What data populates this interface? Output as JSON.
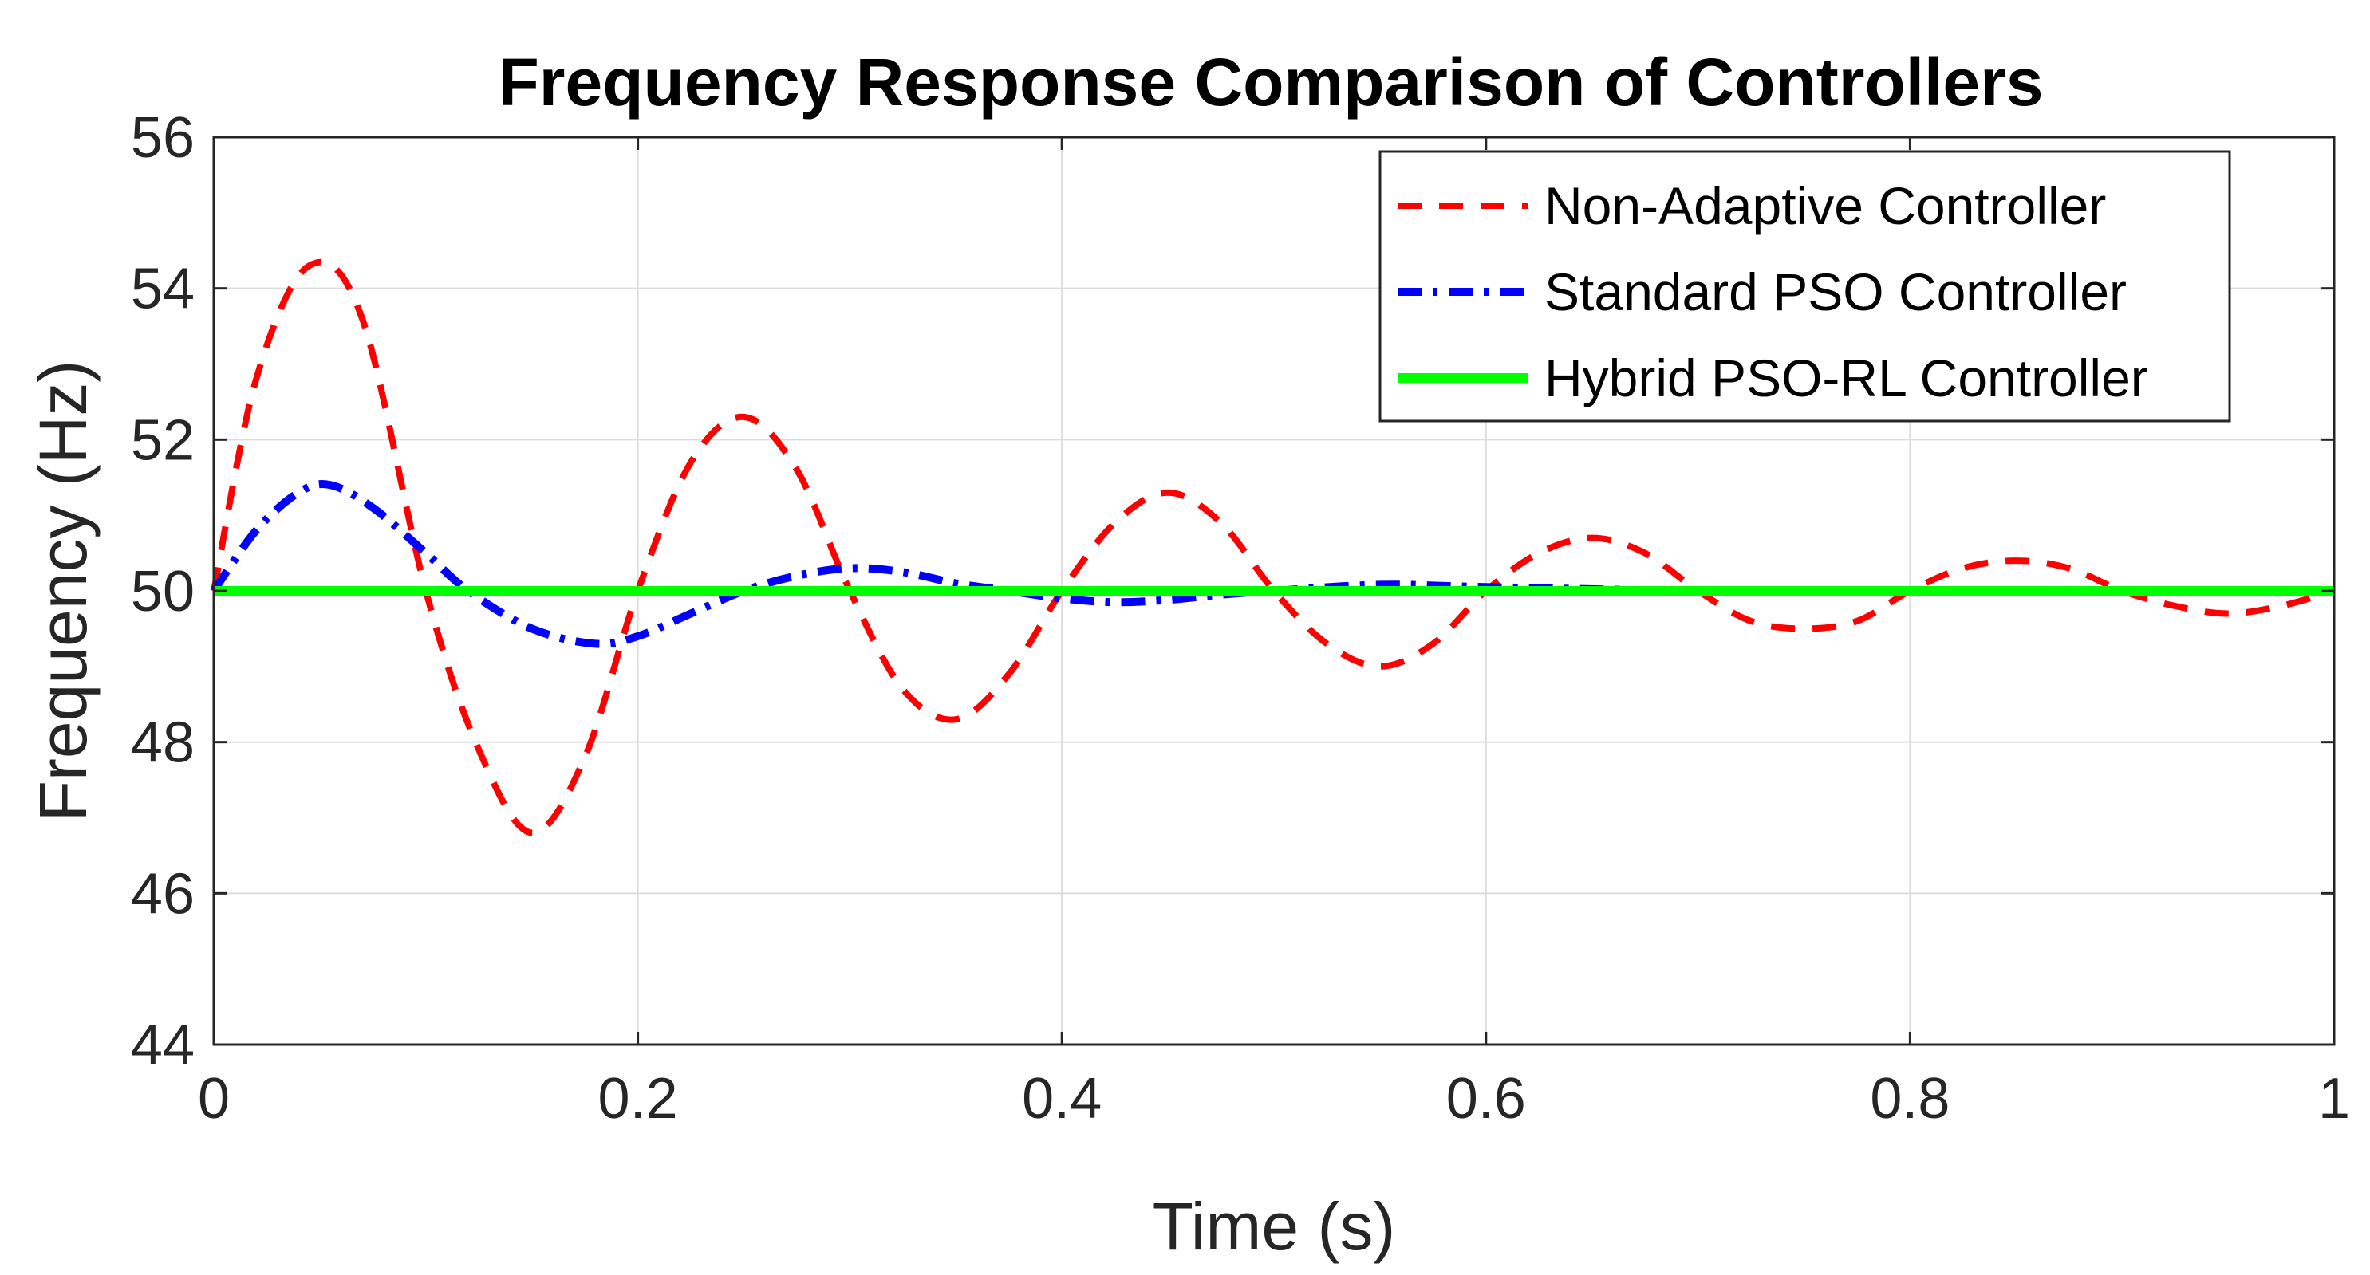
{
  "chart_data": {
    "type": "line",
    "title": "Frequency Response Comparison of Controllers",
    "xlabel": "Time (s)",
    "ylabel": "Frequency (Hz)",
    "xlim": [
      0,
      1
    ],
    "ylim": [
      44,
      56
    ],
    "xticks": [
      0,
      0.2,
      0.4,
      0.6,
      0.8,
      1
    ],
    "xtick_labels": [
      "0",
      "0.2",
      "0.4",
      "0.6",
      "0.8",
      "1"
    ],
    "yticks": [
      44,
      46,
      48,
      50,
      52,
      54,
      56
    ],
    "ytick_labels": [
      "44",
      "46",
      "48",
      "50",
      "52",
      "54",
      "56"
    ],
    "grid": true,
    "legend_position": "top-right",
    "series": [
      {
        "name": "Non-Adaptive Controller",
        "color": "#ff0000",
        "style": "dashed",
        "x": [
          0,
          0.02,
          0.045,
          0.07,
          0.1,
          0.125,
          0.15,
          0.175,
          0.2,
          0.225,
          0.25,
          0.275,
          0.3,
          0.325,
          0.35,
          0.375,
          0.4,
          0.425,
          0.45,
          0.475,
          0.5,
          0.525,
          0.55,
          0.575,
          0.6,
          0.625,
          0.65,
          0.675,
          0.7,
          0.725,
          0.75,
          0.775,
          0.8,
          0.825,
          0.85,
          0.875,
          0.9,
          0.925,
          0.95,
          0.975,
          1.0
        ],
        "y": [
          50,
          52.8,
          54.3,
          53.6,
          50.0,
          47.9,
          46.8,
          47.8,
          50.0,
          51.7,
          52.3,
          51.6,
          50.0,
          48.7,
          48.3,
          48.9,
          50.0,
          50.9,
          51.3,
          50.9,
          50.0,
          49.3,
          49.0,
          49.3,
          50.0,
          50.5,
          50.7,
          50.5,
          50.0,
          49.6,
          49.5,
          49.6,
          50.0,
          50.3,
          50.4,
          50.3,
          50.0,
          49.8,
          49.7,
          49.8,
          50.0
        ]
      },
      {
        "name": "Standard PSO Controller",
        "color": "#0000ff",
        "style": "dashdot",
        "x": [
          0,
          0.02,
          0.04,
          0.055,
          0.075,
          0.1,
          0.12,
          0.15,
          0.18,
          0.2,
          0.225,
          0.25,
          0.275,
          0.3,
          0.325,
          0.35,
          0.375,
          0.4,
          0.425,
          0.45,
          0.475,
          0.5,
          0.55,
          0.6,
          0.7,
          0.8,
          0.9,
          1.0
        ],
        "y": [
          50,
          50.8,
          51.3,
          51.4,
          51.1,
          50.5,
          50.0,
          49.5,
          49.3,
          49.4,
          49.7,
          50.0,
          50.2,
          50.3,
          50.25,
          50.1,
          50.0,
          49.9,
          49.85,
          49.88,
          49.95,
          50.0,
          50.08,
          50.05,
          50.0,
          50.0,
          50.0,
          50.0
        ]
      },
      {
        "name": "Hybrid PSO-RL Controller",
        "color": "#00ff00",
        "style": "solid",
        "x": [
          0,
          1
        ],
        "y": [
          50,
          50
        ]
      }
    ]
  }
}
